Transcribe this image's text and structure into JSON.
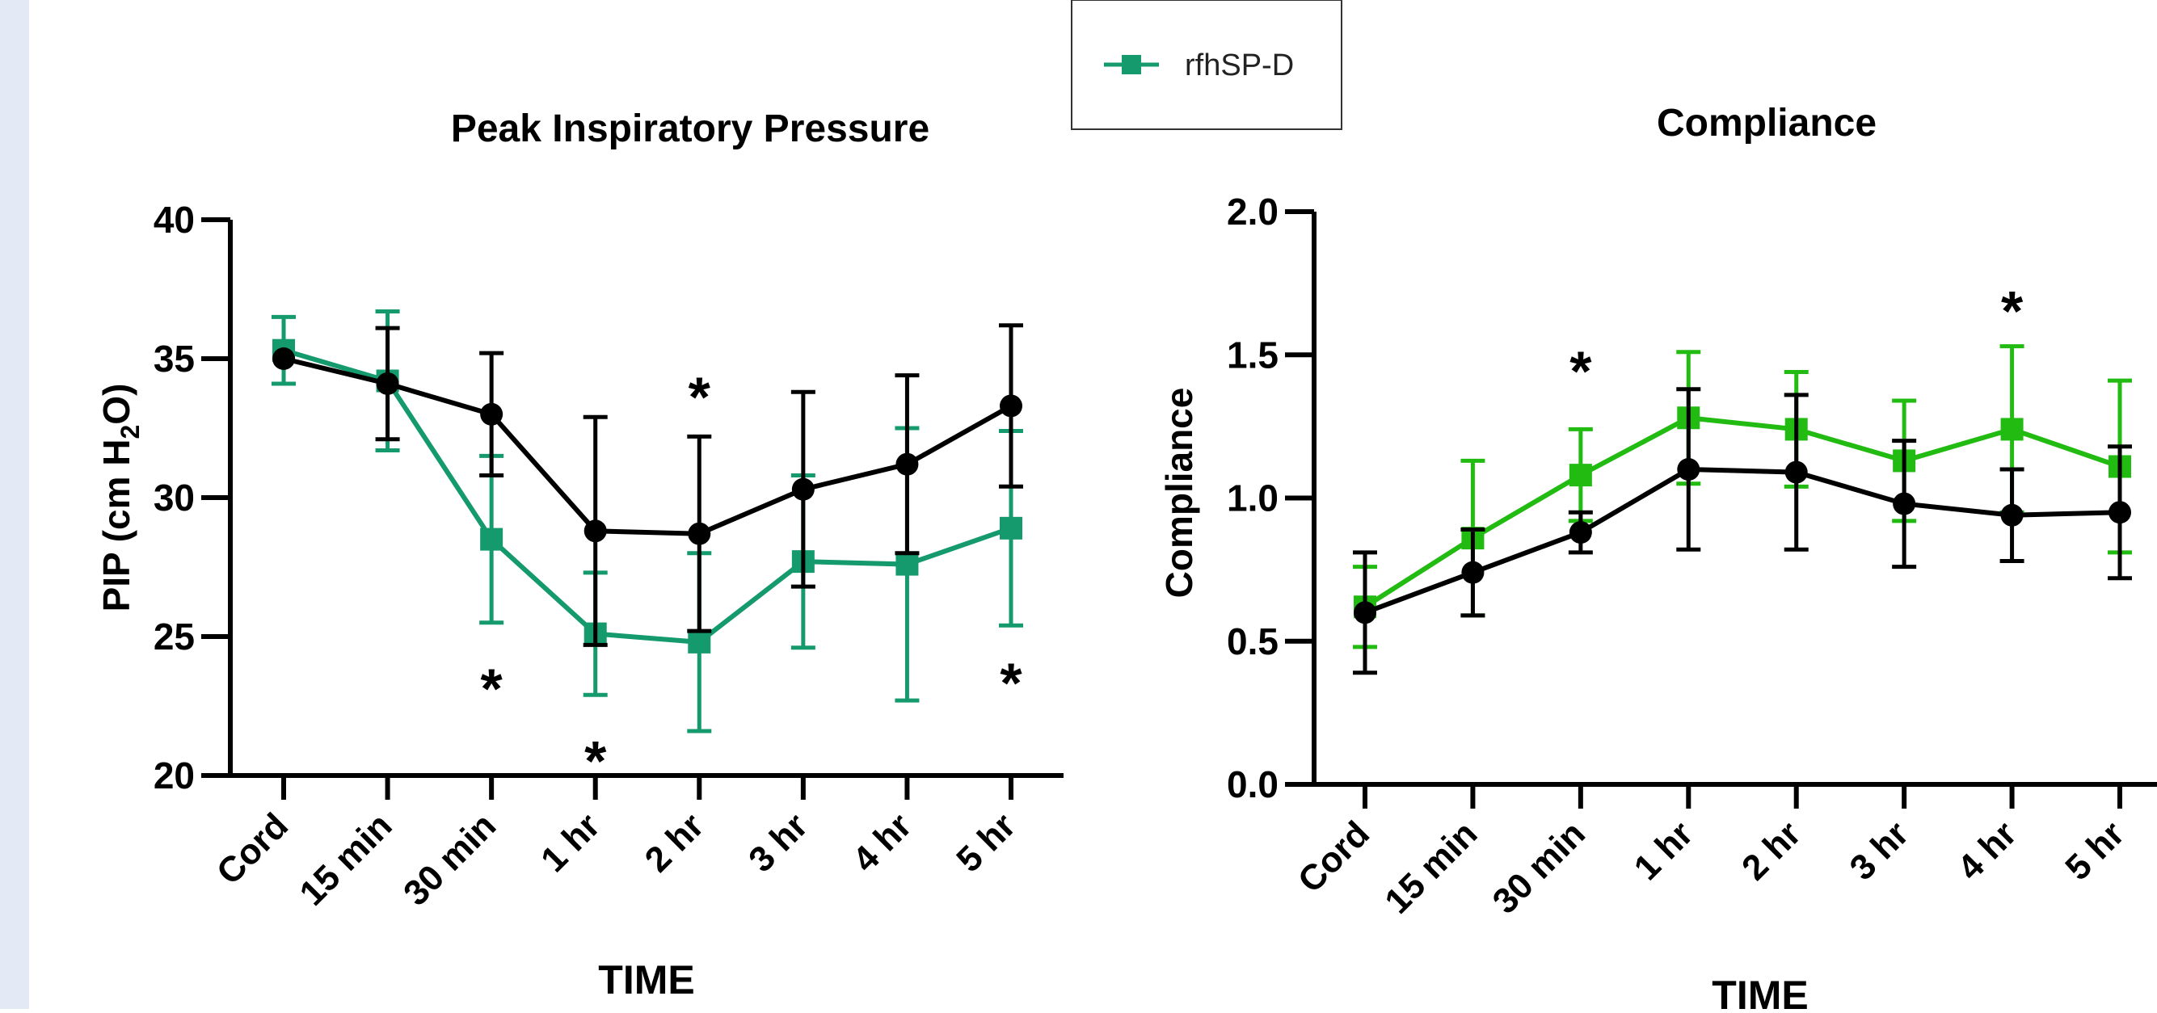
{
  "legend": {
    "series_name": "rfhSP-D"
  },
  "colors": {
    "control": "#000000",
    "treated_left": "#149a6c",
    "treated_right": "#22bb12"
  },
  "chart_data": [
    {
      "type": "line",
      "title": "Peak Inspiratory Pressure",
      "xlabel": "TIME",
      "ylabel_prefix": "PIP (cm H",
      "ylabel_sub": "2",
      "ylabel_suffix": "O)",
      "categories": [
        "Cord",
        "15 min",
        "30 min",
        "1 hr",
        "2 hr",
        "3 hr",
        "4 hr",
        "5 hr"
      ],
      "yticks": [
        "20",
        "25",
        "30",
        "35",
        "40"
      ],
      "ylim": [
        20,
        40
      ],
      "series": [
        {
          "name": "",
          "color_key": "control",
          "marker": "circle",
          "values": [
            35.0,
            34.1,
            33.0,
            28.8,
            28.7,
            30.3,
            31.2,
            33.3
          ],
          "error": [
            0.0,
            2.0,
            2.2,
            4.1,
            3.5,
            3.5,
            3.2,
            2.9
          ]
        },
        {
          "name": "rfhSP-D",
          "color_key": "treated_left",
          "marker": "square",
          "values": [
            35.3,
            34.2,
            28.5,
            25.1,
            24.8,
            27.7,
            27.6,
            28.9
          ],
          "error": [
            1.2,
            2.5,
            3.0,
            2.2,
            3.2,
            3.1,
            4.9,
            3.5
          ]
        }
      ],
      "annotations": [
        {
          "label": "*",
          "category": "30 min",
          "y": 23.3
        },
        {
          "label": "*",
          "category": "1 hr",
          "y": 20.7
        },
        {
          "label": "*",
          "category": "2 hr",
          "y": 33.8
        },
        {
          "label": "*",
          "category": "5 hr",
          "y": 23.5
        }
      ]
    },
    {
      "type": "line",
      "title": "Compliance",
      "xlabel": "TIME",
      "ylabel": "Compliance",
      "categories": [
        "Cord",
        "15 min",
        "30 min",
        "1 hr",
        "2 hr",
        "3 hr",
        "4 hr",
        "5 hr"
      ],
      "yticks": [
        "0.0",
        "0.5",
        "1.0",
        "1.5",
        "2.0"
      ],
      "ylim": [
        0,
        2
      ],
      "series": [
        {
          "name": "",
          "color_key": "control",
          "marker": "circle",
          "values": [
            0.6,
            0.74,
            0.88,
            1.1,
            1.09,
            0.98,
            0.94,
            0.95
          ],
          "error": [
            0.21,
            0.15,
            0.07,
            0.28,
            0.27,
            0.22,
            0.16,
            0.23
          ]
        },
        {
          "name": "rfhSP-D",
          "color_key": "treated_right",
          "marker": "square",
          "values": [
            0.62,
            0.86,
            1.08,
            1.28,
            1.24,
            1.13,
            1.24,
            1.11
          ],
          "error": [
            0.14,
            0.27,
            0.16,
            0.23,
            0.2,
            0.21,
            0.29,
            0.3
          ]
        }
      ],
      "annotations": [
        {
          "label": "*",
          "category": "30 min",
          "y": 1.46
        },
        {
          "label": "*",
          "category": "4 hr",
          "y": 1.67
        }
      ]
    }
  ]
}
